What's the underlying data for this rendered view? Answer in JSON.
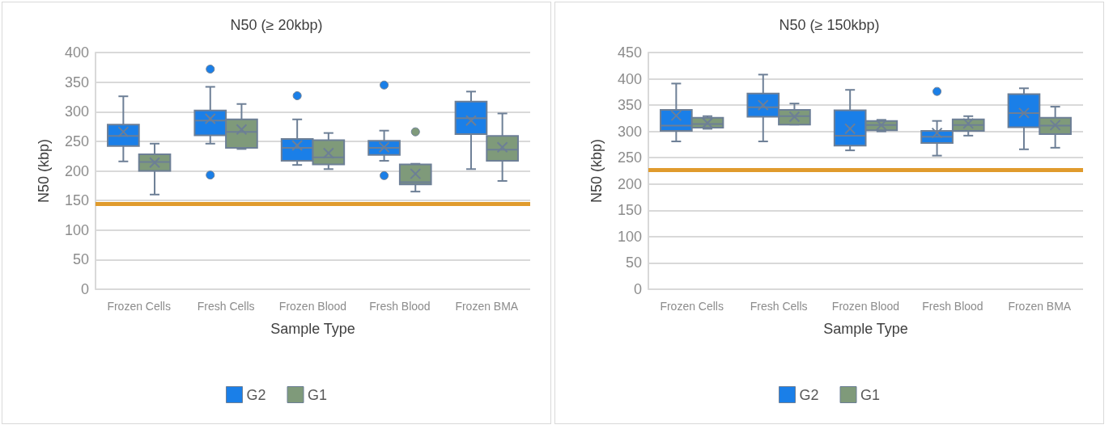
{
  "chart_data": [
    {
      "type": "box",
      "title": "N50 (≥ 20kbp)",
      "xlabel": "Sample Type",
      "ylabel": "N50 (kbp)",
      "categories": [
        "Frozen Cells",
        "Fresh Cells",
        "Frozen Blood",
        "Fresh Blood",
        "Frozen BMA"
      ],
      "ylim": [
        0,
        400
      ],
      "yticks": [
        0,
        50,
        100,
        150,
        200,
        250,
        300,
        350,
        400
      ],
      "grid": "y",
      "legend": "bottom",
      "ref_lines": [
        {
          "axis": "y",
          "value": 145,
          "color": "#e09b2d"
        }
      ],
      "series": [
        {
          "name": "G2",
          "color": "#1a7fe8",
          "boxes": [
            {
              "low": 216,
              "q1": 242,
              "median": 259,
              "q3": 278,
              "high": 326,
              "mean": 266
            },
            {
              "low": 246,
              "q1": 260,
              "median": 285,
              "q3": 302,
              "high": 342,
              "mean": 288,
              "outliers": [
                372,
                193
              ]
            },
            {
              "low": 210,
              "q1": 217,
              "median": 239,
              "q3": 254,
              "high": 287,
              "mean": 243,
              "outliers": [
                327
              ]
            },
            {
              "low": 217,
              "q1": 227,
              "median": 239,
              "q3": 251,
              "high": 268,
              "mean": 240,
              "outliers": [
                345,
                192
              ]
            },
            {
              "low": 203,
              "q1": 262,
              "median": 289,
              "q3": 317,
              "high": 334,
              "mean": 285
            }
          ]
        },
        {
          "name": "G1",
          "color": "#7f9a7a",
          "boxes": [
            {
              "low": 160,
              "q1": 200,
              "median": 215,
              "q3": 228,
              "high": 246,
              "mean": 214
            },
            {
              "low": 237,
              "q1": 239,
              "median": 266,
              "q3": 287,
              "high": 313,
              "mean": 270
            },
            {
              "low": 203,
              "q1": 211,
              "median": 223,
              "q3": 252,
              "high": 264,
              "mean": 230
            },
            {
              "low": 165,
              "q1": 177,
              "median": 181,
              "q3": 211,
              "high": 212,
              "mean": 195,
              "outliers": [
                266
              ]
            },
            {
              "low": 183,
              "q1": 217,
              "median": 236,
              "q3": 259,
              "high": 297,
              "mean": 240
            }
          ]
        }
      ]
    },
    {
      "type": "box",
      "title": "N50 (≥ 150kbp)",
      "xlabel": "Sample Type",
      "ylabel": "N50 (kbp)",
      "categories": [
        "Frozen Cells",
        "Fresh Cells",
        "Frozen Blood",
        "Fresh Blood",
        "Frozen BMA"
      ],
      "ylim": [
        0,
        450
      ],
      "yticks": [
        0,
        50,
        100,
        150,
        200,
        250,
        300,
        350,
        400,
        450
      ],
      "grid": "y",
      "legend": "bottom",
      "ref_lines": [
        {
          "axis": "y",
          "value": 227,
          "color": "#e09b2d"
        }
      ],
      "series": [
        {
          "name": "G2",
          "color": "#1a7fe8",
          "boxes": [
            {
              "low": 281,
              "q1": 301,
              "median": 311,
              "q3": 341,
              "high": 391,
              "mean": 330
            },
            {
              "low": 281,
              "q1": 328,
              "median": 346,
              "q3": 372,
              "high": 408,
              "mean": 350
            },
            {
              "low": 264,
              "q1": 273,
              "median": 292,
              "q3": 340,
              "high": 379,
              "mean": 305
            },
            {
              "low": 254,
              "q1": 278,
              "median": 290,
              "q3": 301,
              "high": 320,
              "mean": 297,
              "outliers": [
                376
              ]
            },
            {
              "low": 266,
              "q1": 308,
              "median": 335,
              "q3": 371,
              "high": 382,
              "mean": 335
            }
          ]
        },
        {
          "name": "G1",
          "color": "#7f9a7a",
          "boxes": [
            {
              "low": 305,
              "q1": 307,
              "median": 314,
              "q3": 326,
              "high": 329,
              "mean": 316
            },
            {
              "low": 313,
              "q1": 313,
              "median": 329,
              "q3": 341,
              "high": 353,
              "mean": 328
            },
            {
              "low": 300,
              "q1": 302,
              "median": 312,
              "q3": 320,
              "high": 322,
              "mean": 312
            },
            {
              "low": 292,
              "q1": 301,
              "median": 312,
              "q3": 323,
              "high": 329,
              "mean": 315
            },
            {
              "low": 269,
              "q1": 295,
              "median": 311,
              "q3": 326,
              "high": 347,
              "mean": 312
            }
          ]
        }
      ]
    }
  ]
}
